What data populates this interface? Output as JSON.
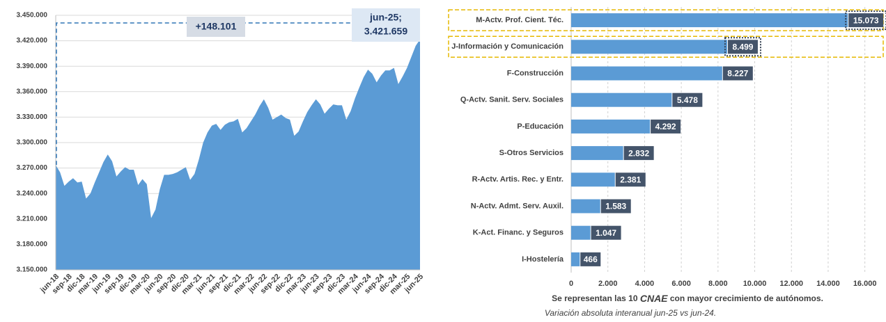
{
  "chart_data": [
    {
      "type": "area",
      "color": "#5b9bd5",
      "categories": [
        "jun-18",
        null,
        null,
        "sep-18",
        null,
        null,
        "dic-18",
        null,
        null,
        "mar-19",
        null,
        null,
        "jun-19",
        null,
        null,
        "sep-19",
        null,
        null,
        "dic-19",
        null,
        null,
        "mar-20",
        null,
        null,
        "jun-20",
        null,
        null,
        "sep-20",
        null,
        null,
        "dic-20",
        null,
        null,
        "mar-21",
        null,
        null,
        "jun-21",
        null,
        null,
        "sep-21",
        null,
        null,
        "dic-21",
        null,
        null,
        "mar-22",
        null,
        null,
        "jun-22",
        null,
        null,
        "sep-22",
        null,
        null,
        "dic-22",
        null,
        null,
        "mar-23",
        null,
        null,
        "jun-23",
        null,
        null,
        "sep-23",
        null,
        null,
        "dic-23",
        null,
        null,
        "mar-24",
        null,
        null,
        "jun-24",
        null,
        null,
        "sep-24",
        null,
        null,
        "dic-24",
        null,
        null,
        "mar-25",
        null,
        null,
        "jun-25"
      ],
      "values": [
        3273558,
        3265000,
        3249000,
        3254000,
        3258000,
        3253000,
        3254000,
        3234000,
        3240000,
        3253000,
        3265000,
        3277000,
        3286000,
        3278000,
        3260000,
        3266000,
        3271000,
        3268000,
        3268000,
        3250000,
        3257000,
        3251000,
        3211000,
        3221000,
        3245000,
        3262000,
        3262000,
        3263000,
        3265000,
        3268000,
        3271000,
        3256000,
        3263000,
        3280000,
        3300000,
        3312000,
        3320000,
        3322000,
        3315000,
        3321000,
        3324000,
        3325000,
        3328000,
        3312000,
        3317000,
        3325000,
        3333000,
        3343000,
        3351000,
        3341000,
        3327000,
        3330000,
        3333000,
        3329000,
        3327000,
        3308000,
        3313000,
        3325000,
        3336000,
        3344000,
        3351000,
        3345000,
        3334000,
        3340000,
        3345000,
        3344000,
        3344000,
        3327000,
        3337000,
        3352000,
        3365000,
        3377000,
        3386000,
        3381000,
        3371000,
        3379000,
        3385000,
        3385000,
        3388000,
        3369000,
        3378000,
        3388000,
        3401000,
        3414000,
        3421659
      ],
      "ylim": [
        3150000,
        3450000
      ],
      "yticks": [
        {
          "value": 3150000,
          "label": "3.150.000"
        },
        {
          "value": 3180000,
          "label": "3.180.000"
        },
        {
          "value": 3210000,
          "label": "3.210.000"
        },
        {
          "value": 3240000,
          "label": "3.240.000"
        },
        {
          "value": 3270000,
          "label": "3.270.000"
        },
        {
          "value": 3300000,
          "label": "3.300.000"
        },
        {
          "value": 3330000,
          "label": "3.330.000"
        },
        {
          "value": 3360000,
          "label": "3.360.000"
        },
        {
          "value": 3390000,
          "label": "3.390.000"
        },
        {
          "value": 3420000,
          "label": "3.420.000"
        },
        {
          "value": 3450000,
          "label": "3.450.000"
        }
      ],
      "grid": true,
      "delta_label": "+148.101",
      "last_label": [
        "jun-25;",
        "3.421.659"
      ]
    },
    {
      "type": "hbar",
      "color": "#5b9bd5",
      "label_color": "#44546a",
      "categories": [
        "M-Actv. Prof. Cient. Téc.",
        "J-Información y Comunicación",
        "F-Construcción",
        "Q-Actv. Sanit. Serv. Sociales",
        "P-Educación",
        "S-Otros Servicios",
        "R-Actv. Artis. Rec. y Entr.",
        "N-Actv. Admt. Serv. Auxil.",
        "K-Act. Financ. y Seguros",
        "I-Hostelería"
      ],
      "values": [
        15073,
        8499,
        8227,
        5478,
        4292,
        2832,
        2381,
        1583,
        1047,
        466
      ],
      "value_labels": [
        "15.073",
        "8.499",
        "8.227",
        "5.478",
        "4.292",
        "2.832",
        "2.381",
        "1.583",
        "1.047",
        "466"
      ],
      "xlim": [
        0,
        17000
      ],
      "xticks": [
        0,
        {
          "value": 2000,
          "label": "2.000"
        },
        {
          "value": 4000,
          "label": "4.000"
        },
        {
          "value": 6000,
          "label": "6.000"
        },
        {
          "value": 8000,
          "label": "8.000"
        },
        {
          "value": 10000,
          "label": "10.000"
        },
        {
          "value": 12000,
          "label": "12.000"
        },
        {
          "value": 14000,
          "label": "14.000"
        },
        {
          "value": 16000,
          "label": "16.000"
        }
      ],
      "grid": true,
      "caption": [
        "Se representan las 10 ",
        "CNAE",
        " con mayor crecimiento de autónomos."
      ],
      "subcaption": "Variación absoluta interanual jun-25 vs jun-24."
    }
  ]
}
